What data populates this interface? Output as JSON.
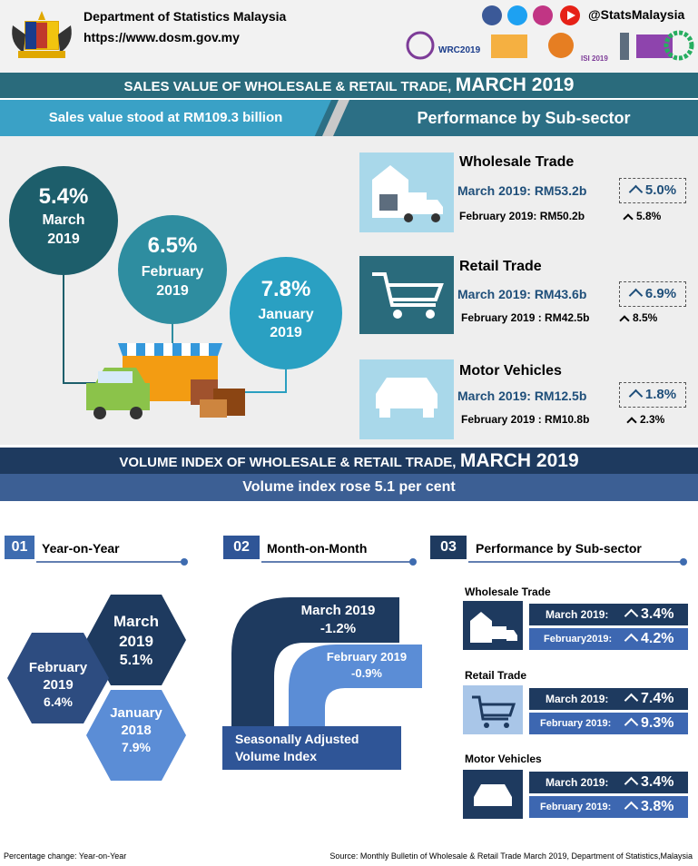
{
  "header": {
    "org": "Department of Statistics Malaysia",
    "url": "https://www.dosm.gov.my",
    "social": "@StatsMalaysia",
    "logos": [
      "WRC2019",
      "ISI 2019"
    ]
  },
  "sales": {
    "title": "SALES VALUE OF WHOLESALE & RETAIL TRADE,",
    "title_date": "MARCH 2019",
    "headline": "Sales value stood at RM109.3 billion",
    "subsector_title": "Performance by Sub-sector",
    "bubbles": [
      {
        "pct": "5.4%",
        "month": "March",
        "year": "2019"
      },
      {
        "pct": "6.5%",
        "month": "February",
        "year": "2019"
      },
      {
        "pct": "7.8%",
        "month": "January",
        "year": "2019"
      }
    ],
    "subsectors": [
      {
        "name": "Wholesale Trade",
        "current": "March 2019: RM53.2b",
        "current_change": "5.0%",
        "previous": "February 2019: RM50.2b",
        "previous_change": "5.8%"
      },
      {
        "name": "Retail Trade",
        "current": "March 2019: RM43.6b",
        "current_change": "6.9%",
        "previous": "February 2019 : RM42.5b",
        "previous_change": "8.5%"
      },
      {
        "name": "Motor Vehicles",
        "current": "March 2019: RM12.5b",
        "current_change": "1.8%",
        "previous": "February 2019 : RM10.8b",
        "previous_change": "2.3%"
      }
    ]
  },
  "volume": {
    "title": "VOLUME INDEX OF WHOLESALE & RETAIL TRADE,",
    "title_date": "MARCH 2019",
    "headline": "Volume index rose 5.1 per cent",
    "sections": [
      {
        "num": "01",
        "label": "Year-on-Year"
      },
      {
        "num": "02",
        "label": "Month-on-Month"
      },
      {
        "num": "03",
        "label": "Performance by Sub-sector"
      }
    ],
    "yoy": [
      {
        "month": "March",
        "year": "2019",
        "pct": "5.1%"
      },
      {
        "month": "February",
        "year": "2019",
        "pct": "6.4%"
      },
      {
        "month": "January",
        "year": "2018",
        "pct": "7.9%"
      }
    ],
    "mom": [
      {
        "label": "March 2019",
        "pct": "-1.2%"
      },
      {
        "label": "February 2019",
        "pct": "-0.9%"
      }
    ],
    "mom_caption": [
      "Seasonally Adjusted",
      "Volume Index"
    ],
    "subsectors": [
      {
        "name": "Wholesale Trade",
        "rows": [
          {
            "label": "March 2019:",
            "change": "3.4%"
          },
          {
            "label": "February2019:",
            "change": "4.2%"
          }
        ]
      },
      {
        "name": "Retail Trade",
        "rows": [
          {
            "label": "March 2019:",
            "change": "7.4%"
          },
          {
            "label": "February 2019:",
            "change": "9.3%"
          }
        ]
      },
      {
        "name": "Motor Vehicles",
        "rows": [
          {
            "label": "March 2019:",
            "change": "3.4%"
          },
          {
            "label": "February 2019:",
            "change": "3.8%"
          }
        ]
      }
    ]
  },
  "footer": {
    "note": "Percentage change: Year-on-Year",
    "source": "Source: Monthly Bulletin of Wholesale & Retail Trade March 2019, Department of Statistics,Malaysia"
  }
}
